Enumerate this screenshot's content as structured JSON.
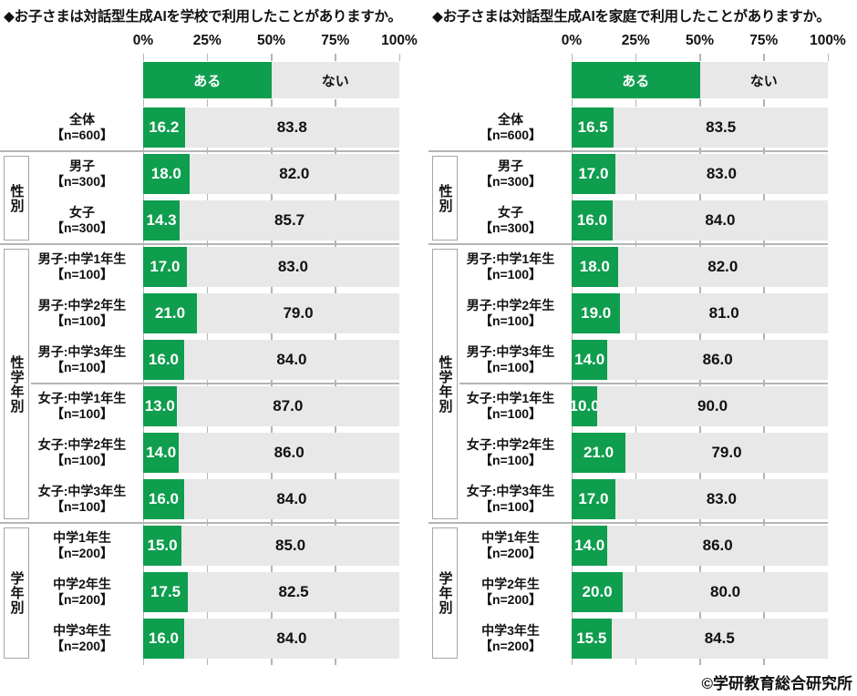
{
  "footer": "©学研教育総合研究所",
  "colors": {
    "aru_green": "#0f9d4e",
    "nai_gray": "#e8e8e8",
    "value_on_green": "#ffffff",
    "value_on_gray": "#111111",
    "tick_gray": "#b4b4b4",
    "group_box_border": "#a6a6a6"
  },
  "chart_data": [
    {
      "type": "bar",
      "orientation": "horizontal",
      "stacked": true,
      "title": "◆お子さまは対話型生成AIを学校で利用したことがありますか。",
      "xlim": [
        0,
        100
      ],
      "x_ticks": [
        "0%",
        "25%",
        "50%",
        "75%",
        "100%"
      ],
      "legend_position": "top",
      "grid": false,
      "categories": [
        {
          "label": "全体",
          "n": "【n=600】"
        },
        {
          "label": "男子",
          "n": "【n=300】"
        },
        {
          "label": "女子",
          "n": "【n=300】"
        },
        {
          "label": "男子:中学1年生",
          "n": "【n=100】"
        },
        {
          "label": "男子:中学2年生",
          "n": "【n=100】"
        },
        {
          "label": "男子:中学3年生",
          "n": "【n=100】"
        },
        {
          "label": "女子:中学1年生",
          "n": "【n=100】"
        },
        {
          "label": "女子:中学2年生",
          "n": "【n=100】"
        },
        {
          "label": "女子:中学3年生",
          "n": "【n=100】"
        },
        {
          "label": "中学1年生",
          "n": "【n=200】"
        },
        {
          "label": "中学2年生",
          "n": "【n=200】"
        },
        {
          "label": "中学3年生",
          "n": "【n=200】"
        }
      ],
      "groups": [
        {
          "label": "性別",
          "from": 1,
          "to": 2
        },
        {
          "label": "性学年別",
          "from": 3,
          "to": 8,
          "subdivider_before_row": 6
        },
        {
          "label": "学年別",
          "from": 9,
          "to": 11
        }
      ],
      "series": [
        {
          "name": "ある",
          "values": [
            16.2,
            18.0,
            14.3,
            17.0,
            21.0,
            16.0,
            13.0,
            14.0,
            16.0,
            15.0,
            17.5,
            16.0
          ]
        },
        {
          "name": "ない",
          "values": [
            83.8,
            82.0,
            85.7,
            83.0,
            79.0,
            84.0,
            87.0,
            86.0,
            84.0,
            85.0,
            82.5,
            84.0
          ]
        }
      ]
    },
    {
      "type": "bar",
      "orientation": "horizontal",
      "stacked": true,
      "title": "◆お子さまは対話型生成AIを家庭で利用したことがありますか。",
      "xlim": [
        0,
        100
      ],
      "x_ticks": [
        "0%",
        "25%",
        "50%",
        "75%",
        "100%"
      ],
      "legend_position": "top",
      "grid": false,
      "categories": [
        {
          "label": "全体",
          "n": "【n=600】"
        },
        {
          "label": "男子",
          "n": "【n=300】"
        },
        {
          "label": "女子",
          "n": "【n=300】"
        },
        {
          "label": "男子:中学1年生",
          "n": "【n=100】"
        },
        {
          "label": "男子:中学2年生",
          "n": "【n=100】"
        },
        {
          "label": "男子:中学3年生",
          "n": "【n=100】"
        },
        {
          "label": "女子:中学1年生",
          "n": "【n=100】"
        },
        {
          "label": "女子:中学2年生",
          "n": "【n=100】"
        },
        {
          "label": "女子:中学3年生",
          "n": "【n=100】"
        },
        {
          "label": "中学1年生",
          "n": "【n=200】"
        },
        {
          "label": "中学2年生",
          "n": "【n=200】"
        },
        {
          "label": "中学3年生",
          "n": "【n=200】"
        }
      ],
      "groups": [
        {
          "label": "性別",
          "from": 1,
          "to": 2
        },
        {
          "label": "性学年別",
          "from": 3,
          "to": 8,
          "subdivider_before_row": 6
        },
        {
          "label": "学年別",
          "from": 9,
          "to": 11
        }
      ],
      "series": [
        {
          "name": "ある",
          "values": [
            16.5,
            17.0,
            16.0,
            18.0,
            19.0,
            14.0,
            10.0,
            21.0,
            17.0,
            14.0,
            20.0,
            15.5
          ]
        },
        {
          "name": "ない",
          "values": [
            83.5,
            83.0,
            84.0,
            82.0,
            81.0,
            86.0,
            90.0,
            79.0,
            83.0,
            86.0,
            80.0,
            84.5
          ]
        }
      ]
    }
  ]
}
